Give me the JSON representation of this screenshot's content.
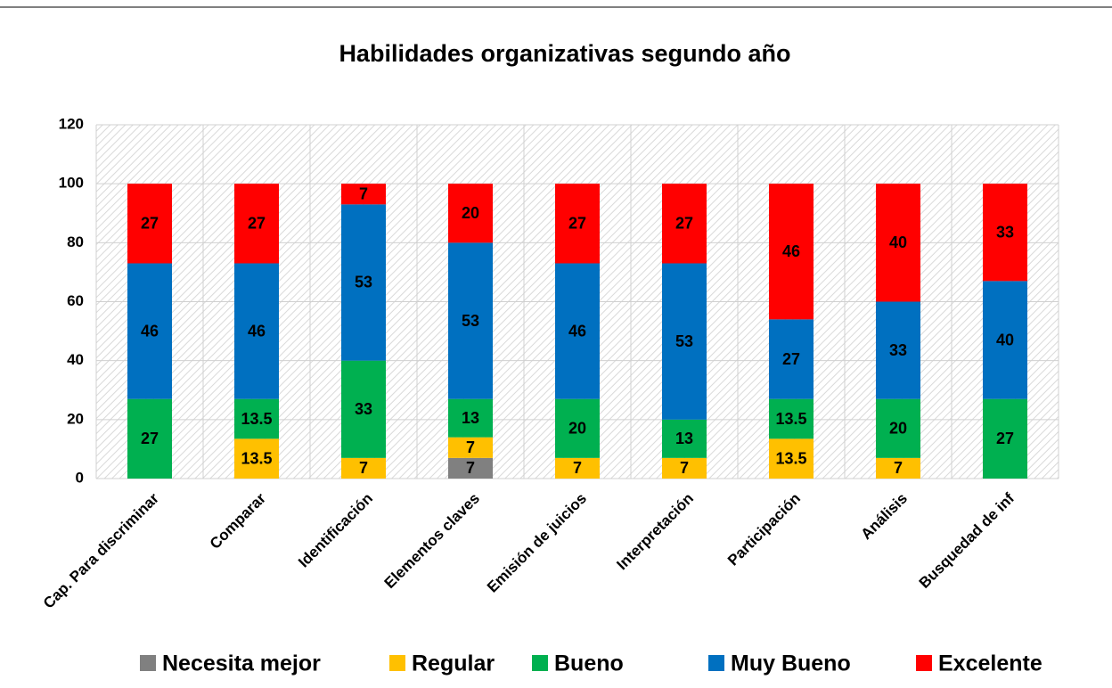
{
  "chart_data": {
    "type": "stacked_bar",
    "title": "Habilidades organizativas segundo año",
    "categories": [
      "Cap. Para discriminar",
      "Comparar",
      "Identificación",
      "Elementos claves",
      "Emisión de juicios",
      "Interpretación",
      "Participación",
      "Análisis",
      "Busquedad de inf"
    ],
    "series": [
      {
        "name": "Necesita mejor",
        "color": "#808080",
        "values": [
          null,
          null,
          null,
          7,
          null,
          null,
          null,
          null,
          null
        ]
      },
      {
        "name": "Regular",
        "color": "#ffc000",
        "values": [
          null,
          13.5,
          7,
          7,
          7,
          7,
          13.5,
          7,
          null
        ]
      },
      {
        "name": "Bueno",
        "color": "#00b050",
        "values": [
          27,
          13.5,
          33,
          13,
          20,
          13,
          13.5,
          20,
          27
        ]
      },
      {
        "name": "Muy Bueno",
        "color": "#0070c0",
        "values": [
          46,
          46,
          53,
          53,
          46,
          53,
          27,
          33,
          40
        ]
      },
      {
        "name": "Excelente",
        "color": "#ff0000",
        "values": [
          27,
          27,
          7,
          20,
          27,
          27,
          46,
          40,
          33
        ]
      }
    ],
    "ylim": [
      0,
      120
    ],
    "yticks": [
      0,
      20,
      40,
      60,
      80,
      100,
      120
    ],
    "grid": true,
    "legend": "bottom"
  }
}
